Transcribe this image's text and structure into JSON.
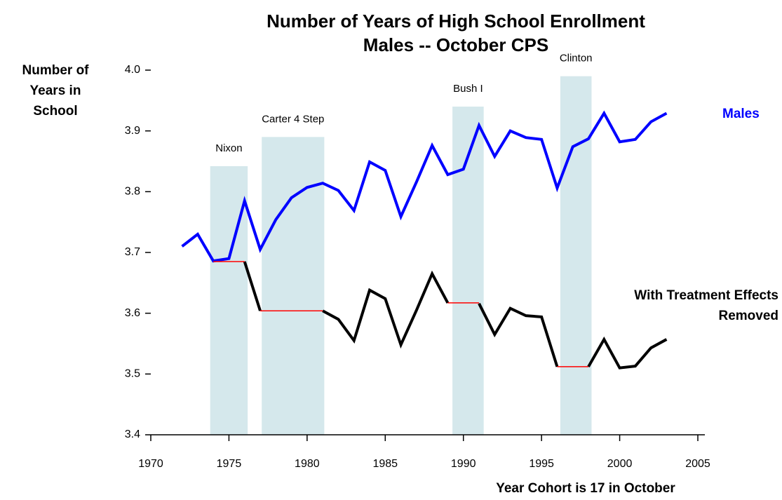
{
  "chart_data": {
    "type": "line",
    "title": "Number of Years of High School Enrollment",
    "subtitle": "Males -- October CPS",
    "ylabel": "Number of Years in School",
    "xlabel": "Year Cohort is 17  in October",
    "x": [
      1972,
      1973,
      1974,
      1975,
      1976,
      1977,
      1978,
      1979,
      1980,
      1981,
      1982,
      1983,
      1984,
      1985,
      1986,
      1987,
      1988,
      1989,
      1990,
      1991,
      1992,
      1993,
      1994,
      1995,
      1996,
      1997,
      1998,
      1999,
      2000,
      2001,
      2002,
      2003
    ],
    "series": [
      {
        "name": "Males",
        "color": "#0000ff",
        "values": [
          3.71,
          3.73,
          3.686,
          3.69,
          3.785,
          3.705,
          3.754,
          3.79,
          3.807,
          3.814,
          3.802,
          3.769,
          3.849,
          3.835,
          3.759,
          3.816,
          3.876,
          3.828,
          3.837,
          3.909,
          3.858,
          3.9,
          3.889,
          3.886,
          3.806,
          3.874,
          3.887,
          3.929,
          3.882,
          3.886,
          3.915,
          3.929
        ]
      },
      {
        "name": "With Treatment Effects Removed",
        "color": "#000000",
        "values": [
          null,
          null,
          null,
          null,
          3.685,
          3.604,
          null,
          null,
          null,
          3.604,
          3.59,
          3.555,
          3.638,
          3.624,
          3.548,
          3.605,
          3.665,
          3.617,
          null,
          3.616,
          3.565,
          3.608,
          3.596,
          3.594,
          3.512,
          null,
          3.512,
          3.557,
          3.51,
          3.513,
          3.543,
          3.557
        ]
      }
    ],
    "hold_color": "#ff0000",
    "hold_segments": [
      {
        "x": [
          1974,
          1976
        ],
        "value": 3.685
      },
      {
        "x": [
          1977,
          1981
        ],
        "value": 3.604
      },
      {
        "x": [
          1989,
          1991
        ],
        "value": 3.617
      },
      {
        "x": [
          1996,
          1998
        ],
        "value": 3.512
      }
    ],
    "band_color": "#d5e8ec",
    "bands": [
      {
        "label": "Nixon",
        "x": [
          1973.8,
          1976.2
        ],
        "top": 3.842
      },
      {
        "label": "Carter 4 Step",
        "x": [
          1977.1,
          1981.1
        ],
        "top": 3.89
      },
      {
        "label": "Bush I",
        "x": [
          1989.3,
          1991.3
        ],
        "top": 3.94
      },
      {
        "label": "Clinton",
        "x": [
          1996.2,
          1998.2
        ],
        "top": 3.99
      }
    ],
    "xlim": [
      1970,
      2005
    ],
    "xticks": [
      1970,
      1975,
      1980,
      1985,
      1990,
      1995,
      2000,
      2005
    ],
    "ylim": [
      3.4,
      4.0
    ],
    "yticks": [
      3.4,
      3.5,
      3.6,
      3.7,
      3.8,
      3.9,
      {
        "value": 4,
        "label": "4.0"
      }
    ],
    "grid": false
  }
}
